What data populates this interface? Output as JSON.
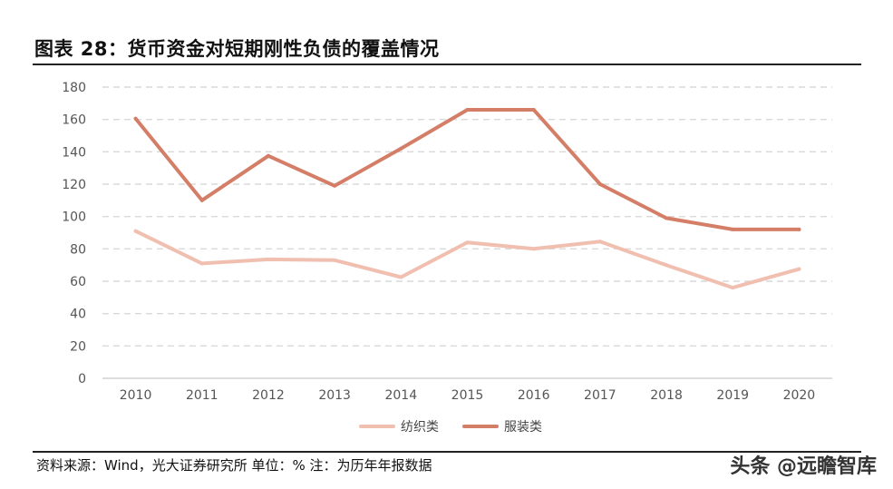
{
  "title": "图表 28：货币资金对短期刚性负债的覆盖情况",
  "source": "资料来源：Wind，光大证券研究所   单位：%   注：为历年年报数据",
  "watermark": "头条 @远瞻智库",
  "chart_data": {
    "type": "line",
    "categories": [
      "2010",
      "2011",
      "2012",
      "2013",
      "2014",
      "2015",
      "2016",
      "2017",
      "2018",
      "2019",
      "2020"
    ],
    "ylim": [
      0,
      180
    ],
    "yticks": [
      0,
      20,
      40,
      60,
      80,
      100,
      120,
      140,
      160,
      180
    ],
    "grid": "horizontal dashed",
    "legend_position": "bottom",
    "series": [
      {
        "name": "纺织类",
        "color": "#f0bfb0",
        "values": [
          91,
          71,
          73.5,
          73,
          62.5,
          84,
          80,
          84.5,
          70,
          56,
          67.5
        ]
      },
      {
        "name": "服装类",
        "color": "#d47e68",
        "values": [
          160.5,
          110,
          137.5,
          119,
          142,
          166,
          166,
          120,
          99,
          92,
          92
        ]
      }
    ]
  }
}
